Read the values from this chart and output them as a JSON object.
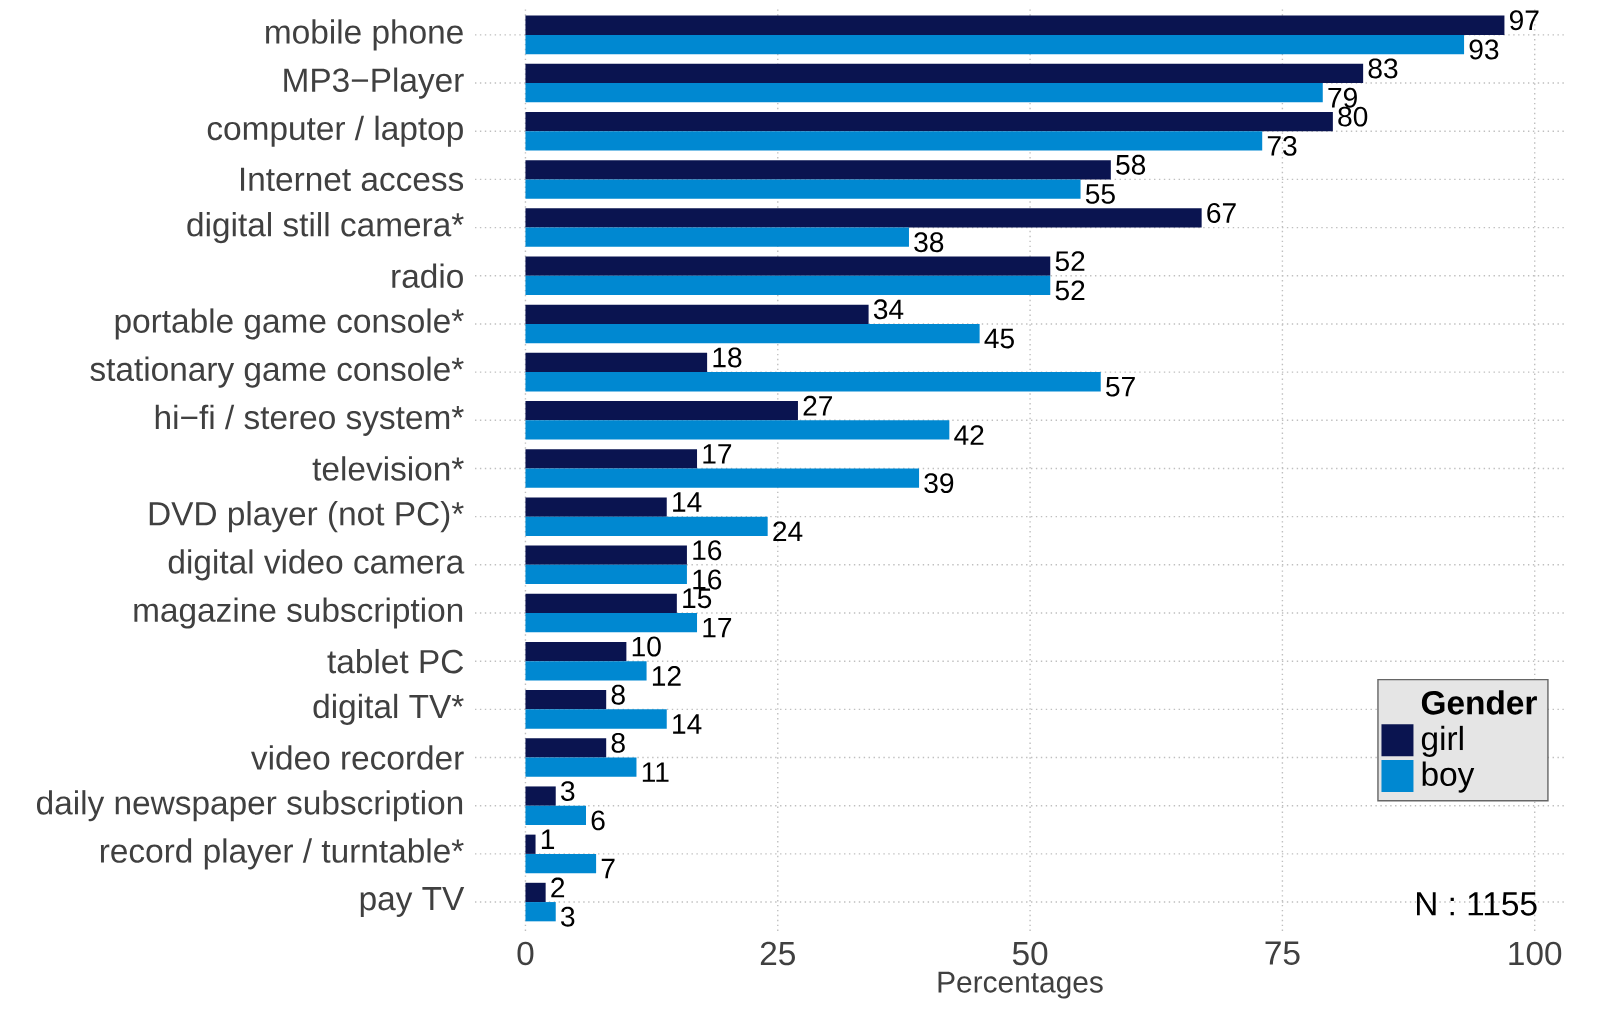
{
  "chart_data": {
    "type": "bar",
    "orientation": "horizontal",
    "xlabel": "Percentages",
    "legend_title": "Gender",
    "categories": [
      "mobile phone",
      "MP3−Player",
      "computer / laptop",
      "Internet access",
      "digital still camera*",
      "radio",
      "portable game console*",
      "stationary game console*",
      "hi−fi / stereo system*",
      "television*",
      "DVD player (not PC)*",
      "digital video camera",
      "magazine subscription",
      "tablet PC",
      "digital TV*",
      "video recorder",
      "daily newspaper subscription",
      "record player / turntable*",
      "pay TV"
    ],
    "series": [
      {
        "name": "girl",
        "color": "#0a1450",
        "values": [
          97,
          83,
          80,
          58,
          67,
          52,
          34,
          18,
          27,
          17,
          14,
          16,
          15,
          10,
          8,
          8,
          3,
          1,
          2
        ]
      },
      {
        "name": "boy",
        "color": "#0088d1",
        "values": [
          93,
          79,
          73,
          55,
          38,
          52,
          45,
          57,
          42,
          39,
          24,
          16,
          17,
          12,
          14,
          11,
          6,
          7,
          3
        ]
      }
    ],
    "xlim": [
      -5,
      103
    ],
    "xticks": [
      0,
      25,
      50,
      75,
      100
    ],
    "grid": true,
    "legend": "bottom right",
    "data_labels": true,
    "annotations": [
      "N : 1155"
    ]
  }
}
